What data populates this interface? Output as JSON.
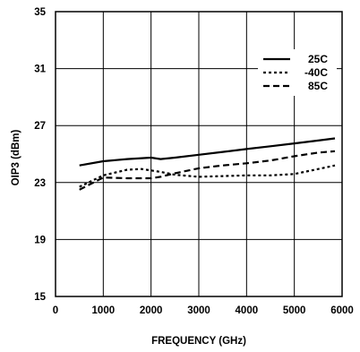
{
  "chart_data": {
    "type": "line",
    "title": "",
    "xlabel": "FREQUENCY (GHz)",
    "ylabel": "OIP3 (dBm)",
    "xlim": [
      0,
      6000
    ],
    "ylim": [
      15,
      35
    ],
    "xticks": [
      0,
      1000,
      2000,
      3000,
      4000,
      5000,
      6000
    ],
    "yticks": [
      15,
      19,
      23,
      27,
      31,
      35
    ],
    "grid": true,
    "legend_position": "top-right",
    "series": [
      {
        "name": "25C",
        "style": "solid",
        "x": [
          500,
          1000,
          1500,
          2000,
          2200,
          2500,
          3000,
          3500,
          4000,
          4500,
          5000,
          5500,
          5850
        ],
        "y": [
          24.2,
          24.5,
          24.65,
          24.75,
          24.65,
          24.75,
          24.95,
          25.15,
          25.35,
          25.55,
          25.75,
          25.95,
          26.1
        ]
      },
      {
        "name": "-40C",
        "style": "dotted",
        "x": [
          500,
          1000,
          1500,
          1800,
          2200,
          2500,
          3000,
          3500,
          4000,
          4500,
          5000,
          5500,
          5850
        ],
        "y": [
          22.7,
          23.5,
          23.9,
          23.95,
          23.75,
          23.55,
          23.4,
          23.45,
          23.5,
          23.5,
          23.6,
          23.95,
          24.2
        ]
      },
      {
        "name": "85C",
        "style": "dashed",
        "x": [
          500,
          1000,
          1500,
          2000,
          2200,
          2500,
          3000,
          3500,
          4000,
          4500,
          5000,
          5500,
          5850
        ],
        "y": [
          22.5,
          23.35,
          23.3,
          23.3,
          23.4,
          23.65,
          24.0,
          24.2,
          24.35,
          24.55,
          24.85,
          25.1,
          25.2
        ]
      }
    ]
  },
  "colors": {
    "line": "#000000",
    "grid": "#000000",
    "background": "#ffffff"
  }
}
